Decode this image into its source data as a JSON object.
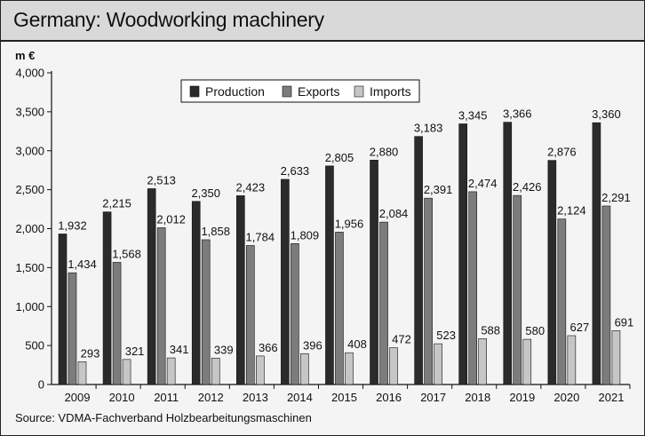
{
  "header": {
    "title": "Germany: Woodworking machinery"
  },
  "source": "Source: VDMA-Fachverband Holzbearbeitungsmaschinen",
  "colors": {
    "production": "#2b2b2b",
    "exports": "#7c7c7c",
    "imports": "#c6c6c6"
  },
  "chart_data": {
    "type": "bar",
    "title": "Germany: Woodworking machinery",
    "ylabel": "m €",
    "xlabel": "",
    "ylim": [
      0,
      4000
    ],
    "yticks": [
      "0",
      "500",
      "1,000",
      "1,500",
      "2,000",
      "2,500",
      "3,000",
      "3,500",
      "4,000"
    ],
    "grid": false,
    "legend_position": "top-center",
    "categories": [
      "2009",
      "2010",
      "2011",
      "2012",
      "2013",
      "2014",
      "2015",
      "2016",
      "2017",
      "2018",
      "2019",
      "2020",
      "2021"
    ],
    "series": [
      {
        "name": "Production",
        "values": [
          1932,
          2215,
          2513,
          2350,
          2423,
          2633,
          2805,
          2880,
          3183,
          3345,
          3366,
          2876,
          3360
        ],
        "labels": [
          "1,932",
          "2,215",
          "2,513",
          "2,350",
          "2,423",
          "2,633",
          "2,805",
          "2,880",
          "3,183",
          "3,345",
          "3,366",
          "2,876",
          "3,360"
        ]
      },
      {
        "name": "Exports",
        "values": [
          1434,
          1568,
          2012,
          1858,
          1784,
          1809,
          1956,
          2084,
          2391,
          2474,
          2426,
          2124,
          2291
        ],
        "labels": [
          "1,434",
          "1,568",
          "2,012",
          "1,858",
          "1,784",
          "1,809",
          "1,956",
          "2,084",
          "2,391",
          "2,474",
          "2,426",
          "2,124",
          "2,291"
        ]
      },
      {
        "name": "Imports",
        "values": [
          293,
          321,
          341,
          339,
          366,
          396,
          408,
          472,
          523,
          588,
          580,
          627,
          691
        ],
        "labels": [
          "293",
          "321",
          "341",
          "339",
          "366",
          "396",
          "408",
          "472",
          "523",
          "588",
          "580",
          "627",
          "691"
        ]
      }
    ]
  }
}
